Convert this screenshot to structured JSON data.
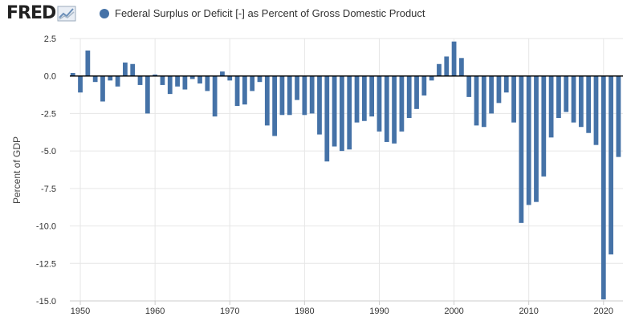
{
  "header": {
    "logo_text": "FRED",
    "logo_icon": "fred-chart-icon",
    "legend_label": "Federal Surplus or Deficit [-] as Percent of Gross Domestic Product",
    "legend_color": "#4572a7"
  },
  "chart_data": {
    "type": "bar",
    "title": "Federal Surplus or Deficit [-] as Percent of Gross Domestic Product",
    "xlabel": "",
    "ylabel": "Percent of GDP",
    "ylim": [
      -15,
      2.5
    ],
    "xlim": [
      1948.6,
      2022.6
    ],
    "yticks": [
      {
        "value": 2.5,
        "label": "2.5"
      },
      {
        "value": 0,
        "label": "0.0"
      },
      {
        "value": -2.5,
        "label": "-2.5"
      },
      {
        "value": -5,
        "label": "-5.0"
      },
      {
        "value": -7.5,
        "label": "-7.5"
      },
      {
        "value": -10,
        "label": "-10.0"
      },
      {
        "value": -12.5,
        "label": "-12.5"
      },
      {
        "value": -15,
        "label": "-15.0"
      }
    ],
    "xticks": [
      {
        "value": 1950,
        "label": "1950"
      },
      {
        "value": 1960,
        "label": "1960"
      },
      {
        "value": 1970,
        "label": "1970"
      },
      {
        "value": 1980,
        "label": "1980"
      },
      {
        "value": 1990,
        "label": "1990"
      },
      {
        "value": 2000,
        "label": "2000"
      },
      {
        "value": 2010,
        "label": "2010"
      },
      {
        "value": 2020,
        "label": "2020"
      }
    ],
    "grid": true,
    "bar_color": "#4572a7",
    "series": [
      {
        "name": "Federal Surplus or Deficit [-] as Percent of Gross Domestic Product",
        "x": [
          1949,
          1950,
          1951,
          1952,
          1953,
          1954,
          1955,
          1956,
          1957,
          1958,
          1959,
          1960,
          1961,
          1962,
          1963,
          1964,
          1965,
          1966,
          1967,
          1968,
          1969,
          1970,
          1971,
          1972,
          1973,
          1974,
          1975,
          1976,
          1977,
          1978,
          1979,
          1980,
          1981,
          1982,
          1983,
          1984,
          1985,
          1986,
          1987,
          1988,
          1989,
          1990,
          1991,
          1992,
          1993,
          1994,
          1995,
          1996,
          1997,
          1998,
          1999,
          2000,
          2001,
          2002,
          2003,
          2004,
          2005,
          2006,
          2007,
          2008,
          2009,
          2010,
          2011,
          2012,
          2013,
          2014,
          2015,
          2016,
          2017,
          2018,
          2019,
          2020,
          2021,
          2022
        ],
        "values": [
          0.2,
          -1.1,
          1.7,
          -0.4,
          -1.7,
          -0.3,
          -0.7,
          0.9,
          0.8,
          -0.6,
          -2.5,
          0.1,
          -0.6,
          -1.2,
          -0.7,
          -0.9,
          -0.2,
          -0.5,
          -1.0,
          -2.7,
          0.3,
          -0.3,
          -2.0,
          -1.9,
          -1.0,
          -0.4,
          -3.3,
          -4.0,
          -2.6,
          -2.6,
          -1.6,
          -2.6,
          -2.5,
          -3.9,
          -5.7,
          -4.7,
          -5.0,
          -4.9,
          -3.1,
          -3.0,
          -2.7,
          -3.7,
          -4.4,
          -4.5,
          -3.7,
          -2.8,
          -2.2,
          -1.3,
          -0.3,
          0.8,
          1.3,
          2.3,
          1.2,
          -1.4,
          -3.3,
          -3.4,
          -2.5,
          -1.8,
          -1.1,
          -3.1,
          -9.8,
          -8.6,
          -8.4,
          -6.7,
          -4.1,
          -2.8,
          -2.4,
          -3.1,
          -3.4,
          -3.8,
          -4.6,
          -14.9,
          -11.9,
          -5.4
        ]
      }
    ]
  }
}
